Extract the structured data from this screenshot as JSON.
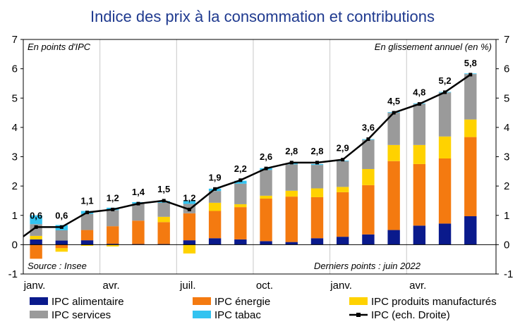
{
  "chart_data": {
    "type": "bar",
    "title": "Indice des prix à la consommation et contributions",
    "left_axis_note": "En points d'IPC",
    "right_axis_note": "En glissement annuel (en %)",
    "source": "Source : Insee",
    "last_points": "Derniers points : juin 2022",
    "ylim": [
      -1,
      7
    ],
    "yticks": [
      "-1",
      "0",
      "1",
      "2",
      "3",
      "4",
      "5",
      "6",
      "7"
    ],
    "x_tick_labels": [
      {
        "label": "janv.",
        "index": 0
      },
      {
        "label": "avr.",
        "index": 3
      },
      {
        "label": "juil.",
        "index": 6
      },
      {
        "label": "oct.",
        "index": 9
      },
      {
        "label": "janv.",
        "index": 12
      },
      {
        "label": "avr.",
        "index": 15
      }
    ],
    "months": 18,
    "series": [
      {
        "name": "IPC alimentaire",
        "color": "#0a1a8c",
        "values": [
          0.18,
          0.14,
          0.15,
          0.03,
          0.02,
          0.02,
          0.15,
          0.22,
          0.18,
          0.12,
          0.09,
          0.22,
          0.27,
          0.35,
          0.5,
          0.65,
          0.72,
          0.97
        ]
      },
      {
        "name": "IPC énergie",
        "color": "#f47a10",
        "values": [
          -0.48,
          -0.12,
          0.35,
          0.6,
          0.8,
          0.75,
          0.92,
          0.93,
          1.1,
          1.45,
          1.55,
          1.4,
          1.52,
          1.68,
          2.35,
          2.1,
          2.22,
          2.7
        ]
      },
      {
        "name": "IPC produits manufacturés",
        "color": "#ffd200",
        "values": [
          0.12,
          -0.12,
          -0.04,
          -0.06,
          0.0,
          0.18,
          -0.3,
          0.28,
          0.1,
          0.1,
          0.2,
          0.3,
          0.18,
          0.55,
          0.55,
          0.65,
          0.75,
          0.6
        ]
      },
      {
        "name": "IPC services",
        "color": "#9a9a9a",
        "values": [
          0.4,
          0.35,
          0.55,
          0.55,
          0.58,
          0.48,
          0.32,
          0.4,
          0.7,
          0.88,
          0.9,
          0.8,
          0.88,
          1.0,
          1.1,
          1.4,
          1.5,
          1.55
        ]
      },
      {
        "name": "IPC tabac",
        "color": "#33c3f0",
        "values": [
          0.3,
          0.18,
          0.1,
          0.08,
          0.05,
          0.06,
          0.1,
          0.08,
          0.1,
          0.06,
          0.03,
          0.03,
          0.02,
          0.02,
          0.02,
          0.02,
          0.02,
          0.02
        ]
      }
    ],
    "line": {
      "name": "IPC (ech. Droite)",
      "color": "#000000",
      "values": [
        0.6,
        0.6,
        1.1,
        1.2,
        1.4,
        1.5,
        1.2,
        1.9,
        2.2,
        2.6,
        2.8,
        2.8,
        2.9,
        3.6,
        4.5,
        4.8,
        5.2,
        5.8
      ],
      "labels": [
        "0,6",
        "0,6",
        "1,1",
        "1,2",
        "1,4",
        "1,5",
        "1,2",
        "1,9",
        "2,2",
        "2,6",
        "2,8",
        "2,8",
        "2,9",
        "3,6",
        "4,5",
        "4,8",
        "5,2",
        "5,8"
      ]
    },
    "legend": [
      {
        "label": "IPC alimentaire",
        "kind": "box",
        "color": "#0a1a8c"
      },
      {
        "label": "IPC énergie",
        "kind": "box",
        "color": "#f47a10"
      },
      {
        "label": "IPC produits manufacturés",
        "kind": "box",
        "color": "#ffd200"
      },
      {
        "label": "IPC services",
        "kind": "box",
        "color": "#9a9a9a"
      },
      {
        "label": "IPC tabac",
        "kind": "box",
        "color": "#33c3f0"
      },
      {
        "label": "IPC (ech. Droite)",
        "kind": "line",
        "color": "#000000"
      }
    ]
  }
}
